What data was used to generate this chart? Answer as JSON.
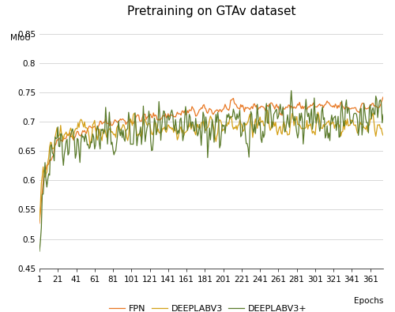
{
  "title": "Pretraining on GTAv dataset",
  "xlabel": "Epochs",
  "ylabel": "MIoU",
  "xlim": [
    1,
    375
  ],
  "ylim": [
    0.45,
    0.87
  ],
  "ytick_values": [
    0.45,
    0.5,
    0.55,
    0.6,
    0.65,
    0.7,
    0.75,
    0.8,
    0.85
  ],
  "ytick_labels": [
    "0.45",
    "0.5",
    "0.55",
    "0.6",
    "0.65",
    "0.7",
    "0.75",
    "0.8",
    "0.85"
  ],
  "xticks": [
    1,
    21,
    41,
    61,
    81,
    101,
    121,
    141,
    161,
    181,
    201,
    221,
    241,
    261,
    281,
    301,
    321,
    341,
    361
  ],
  "legend_labels": [
    "FPN",
    "DEEPLABV3",
    "DEEPLABV3+"
  ],
  "colors": {
    "FPN": "#E87722",
    "DEEPLABV3": "#D4A017",
    "DEEPLABV3+": "#5A7A2B"
  },
  "linewidth": 0.9,
  "background_color": "#ffffff",
  "grid_color": "#d8d8d8",
  "title_fontsize": 11,
  "tick_fontsize": 7.5,
  "legend_fontsize": 8
}
